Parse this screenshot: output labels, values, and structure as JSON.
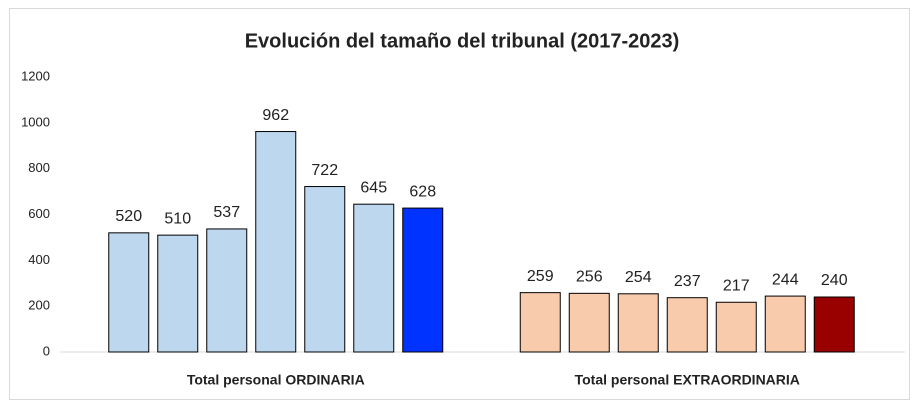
{
  "chart_data": {
    "type": "bar",
    "title": "Evolución del tamaño del tribunal (2017-2023)",
    "categories": [
      "Total personal ORDINARIA",
      "Total personal EXTRAORDINARIA"
    ],
    "series": [
      {
        "colors": [
          "#bdd7ee",
          "#f8cbad"
        ],
        "values": [
          520,
          259
        ]
      },
      {
        "colors": [
          "#bdd7ee",
          "#f8cbad"
        ],
        "values": [
          510,
          256
        ]
      },
      {
        "colors": [
          "#bdd7ee",
          "#f8cbad"
        ],
        "values": [
          537,
          254
        ]
      },
      {
        "colors": [
          "#bdd7ee",
          "#f8cbad"
        ],
        "values": [
          962,
          237
        ]
      },
      {
        "colors": [
          "#bdd7ee",
          "#f8cbad"
        ],
        "values": [
          722,
          217
        ]
      },
      {
        "colors": [
          "#bdd7ee",
          "#f8cbad"
        ],
        "values": [
          645,
          244
        ]
      },
      {
        "colors": [
          "#0033ff",
          "#990000"
        ],
        "values": [
          628,
          240
        ]
      }
    ],
    "ylim": [
      0,
      1200
    ],
    "yticks": [
      0,
      200,
      400,
      600,
      800,
      1000,
      1200
    ],
    "grid": false
  }
}
